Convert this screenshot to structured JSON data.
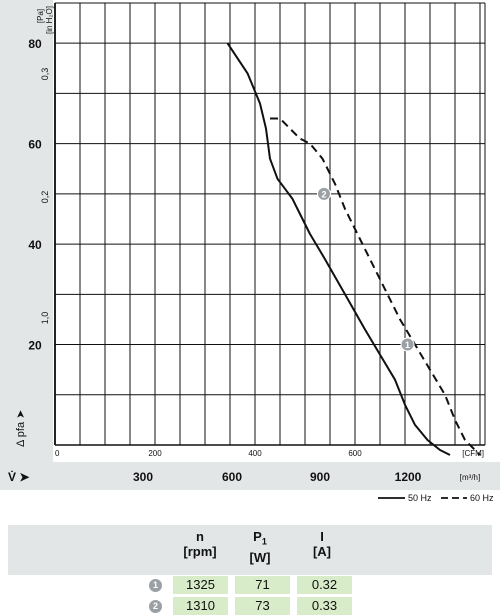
{
  "chart_data": {
    "type": "line",
    "y_axis_pa": {
      "unit": "[Pa]",
      "ticks": [
        20,
        40,
        60,
        80
      ],
      "range": [
        0,
        88
      ],
      "label": "Δ pfa"
    },
    "y_axis_inh2o": {
      "unit": "[in H₂O]",
      "ticks": [
        "1,0",
        "0,2",
        "0,3"
      ]
    },
    "x_axis_cfm": {
      "unit": "[CFM]",
      "ticks": [
        0,
        200,
        400,
        600
      ],
      "range": [
        0,
        860
      ]
    },
    "x_axis_m3h": {
      "unit": "[m³/h]",
      "label": "V̇",
      "ticks": [
        300,
        600,
        900,
        1200
      ]
    },
    "series": [
      {
        "name": "50 Hz",
        "dash": false,
        "x": [
          345,
          385,
          410,
          422,
          430,
          445,
          460,
          475,
          490,
          510,
          540,
          580,
          620,
          650,
          680,
          700,
          720,
          745,
          770,
          790
        ],
        "y": [
          80,
          74,
          68,
          63,
          57,
          53,
          51,
          49,
          46,
          42,
          37,
          30,
          23,
          18,
          13,
          8,
          4,
          1,
          -1,
          -2
        ]
      },
      {
        "name": "60 Hz",
        "dash": true,
        "x": [
          430,
          450,
          470,
          490,
          510,
          535,
          560,
          580,
          600,
          630,
          660,
          690,
          720,
          750,
          780,
          800,
          820,
          850
        ],
        "y": [
          65,
          65,
          63,
          61,
          60,
          57,
          52,
          47,
          43,
          37,
          31,
          25,
          20,
          15,
          10,
          5,
          1,
          -2
        ]
      }
    ],
    "operating_points": [
      {
        "id": "1",
        "x": 705,
        "y": 20
      },
      {
        "id": "2",
        "x": 538,
        "y": 50
      }
    ],
    "legend": {
      "position": "bottom-right",
      "items": [
        "50 Hz",
        "60 Hz"
      ]
    }
  },
  "table": {
    "headers": [
      {
        "main": "n",
        "sub": "",
        "unit": "[rpm]"
      },
      {
        "main": "P",
        "sub": "1",
        "unit": "[W]"
      },
      {
        "main": "I",
        "sub": "",
        "unit": "[A]"
      }
    ],
    "rows": [
      {
        "id": "1",
        "n": "1325",
        "p": "71",
        "i": "0.32"
      },
      {
        "id": "2",
        "n": "1310",
        "p": "73",
        "i": "0.33"
      }
    ]
  }
}
